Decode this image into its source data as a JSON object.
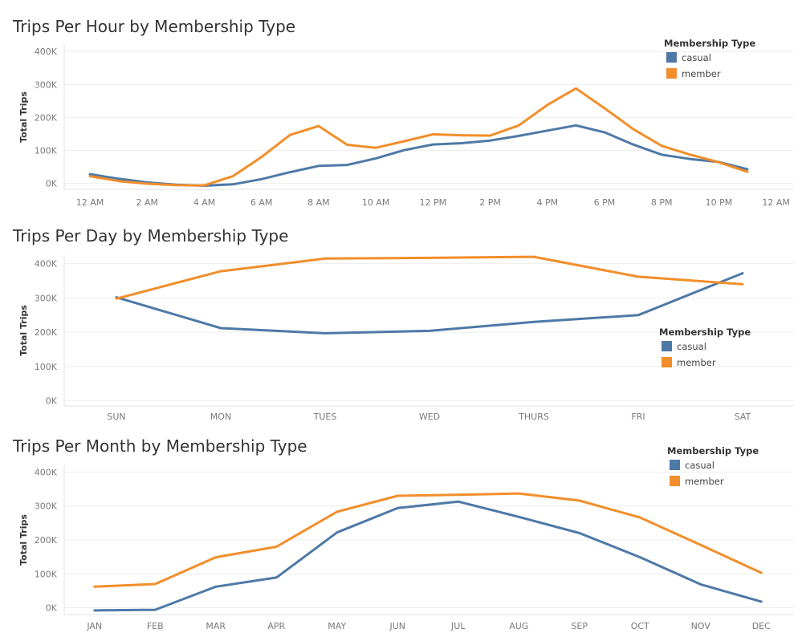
{
  "chart_data": [
    {
      "type": "line",
      "title": "Trips Per Hour by Membership Type",
      "xlabel": "",
      "ylabel": "Total Trips",
      "ylim": [
        -18000,
        420000
      ],
      "y_ticks": [
        0,
        100000,
        200000,
        300000,
        400000
      ],
      "y_tick_labels": [
        "0K",
        "100K",
        "200K",
        "300K",
        "400K"
      ],
      "x": [
        0,
        1,
        2,
        3,
        4,
        5,
        6,
        7,
        8,
        9,
        10,
        11,
        12,
        13,
        14,
        15,
        16,
        17,
        18,
        19,
        20,
        21,
        22,
        23
      ],
      "x_ticks": [
        0,
        2,
        4,
        6,
        8,
        10,
        12,
        14,
        16,
        18,
        20,
        22,
        24
      ],
      "x_tick_labels": [
        "12 AM",
        "2 AM",
        "4 AM",
        "6 AM",
        "8 AM",
        "10 AM",
        "12 PM",
        "2 PM",
        "4 PM",
        "6 PM",
        "8 PM",
        "10 PM",
        "12 AM"
      ],
      "xlim": [
        -0.9,
        24.6
      ],
      "grid": true,
      "legend": {
        "title": "Membership Type",
        "position": "top-right"
      },
      "series": [
        {
          "name": "casual",
          "color": "#4e79a7",
          "values": [
            28000,
            14000,
            3000,
            -4000,
            -7000,
            -3000,
            13000,
            34000,
            53000,
            56000,
            76000,
            101000,
            118000,
            122000,
            130000,
            144000,
            160000,
            176000,
            155000,
            118000,
            87000,
            74000,
            65000,
            43000
          ]
        },
        {
          "name": "member",
          "color": "#f28e2b",
          "values": [
            22000,
            7000,
            -1000,
            -5000,
            -6000,
            22000,
            80000,
            147000,
            174000,
            117000,
            108000,
            128000,
            149000,
            146000,
            145000,
            176000,
            238000,
            288000,
            228000,
            165000,
            114000,
            87000,
            64000,
            35000
          ]
        }
      ]
    },
    {
      "type": "line",
      "title": "Trips Per Day by Membership Type",
      "xlabel": "",
      "ylabel": "Total Trips",
      "ylim": [
        -15000,
        425000
      ],
      "y_ticks": [
        0,
        100000,
        200000,
        300000,
        400000
      ],
      "y_tick_labels": [
        "0K",
        "100K",
        "200K",
        "300K",
        "400K"
      ],
      "categories": [
        "SUN",
        "MON",
        "TUES",
        "WED",
        "THURS",
        "FRI",
        "SAT"
      ],
      "grid": true,
      "legend": {
        "title": "Membership Type",
        "position": "right"
      },
      "series": [
        {
          "name": "casual",
          "color": "#4e79a7",
          "values": [
            302000,
            212000,
            197000,
            204000,
            230000,
            250000,
            372000
          ]
        },
        {
          "name": "member",
          "color": "#f28e2b",
          "values": [
            298000,
            378000,
            415000,
            417000,
            420000,
            362000,
            340000
          ]
        }
      ]
    },
    {
      "type": "line",
      "title": "Trips Per Month by Membership Type",
      "xlabel": "",
      "ylabel": "Total Trips",
      "ylim": [
        -20000,
        420000
      ],
      "y_ticks": [
        0,
        100000,
        200000,
        300000,
        400000
      ],
      "y_tick_labels": [
        "0K",
        "100K",
        "200K",
        "300K",
        "400K"
      ],
      "categories": [
        "JAN",
        "FEB",
        "MAR",
        "APR",
        "MAY",
        "JUN",
        "JUL",
        "AUG",
        "SEP",
        "OCT",
        "NOV",
        "DEC"
      ],
      "grid": true,
      "legend": {
        "title": "Membership Type",
        "position": "top-right"
      },
      "series": [
        {
          "name": "casual",
          "color": "#4e79a7",
          "values": [
            -8000,
            -6000,
            62000,
            89000,
            222000,
            294000,
            313000,
            268000,
            220000,
            149000,
            69000,
            18000
          ]
        },
        {
          "name": "member",
          "color": "#f28e2b",
          "values": [
            62000,
            70000,
            149000,
            180000,
            283000,
            330000,
            333000,
            337000,
            316000,
            266000,
            185000,
            103000
          ]
        }
      ]
    }
  ]
}
